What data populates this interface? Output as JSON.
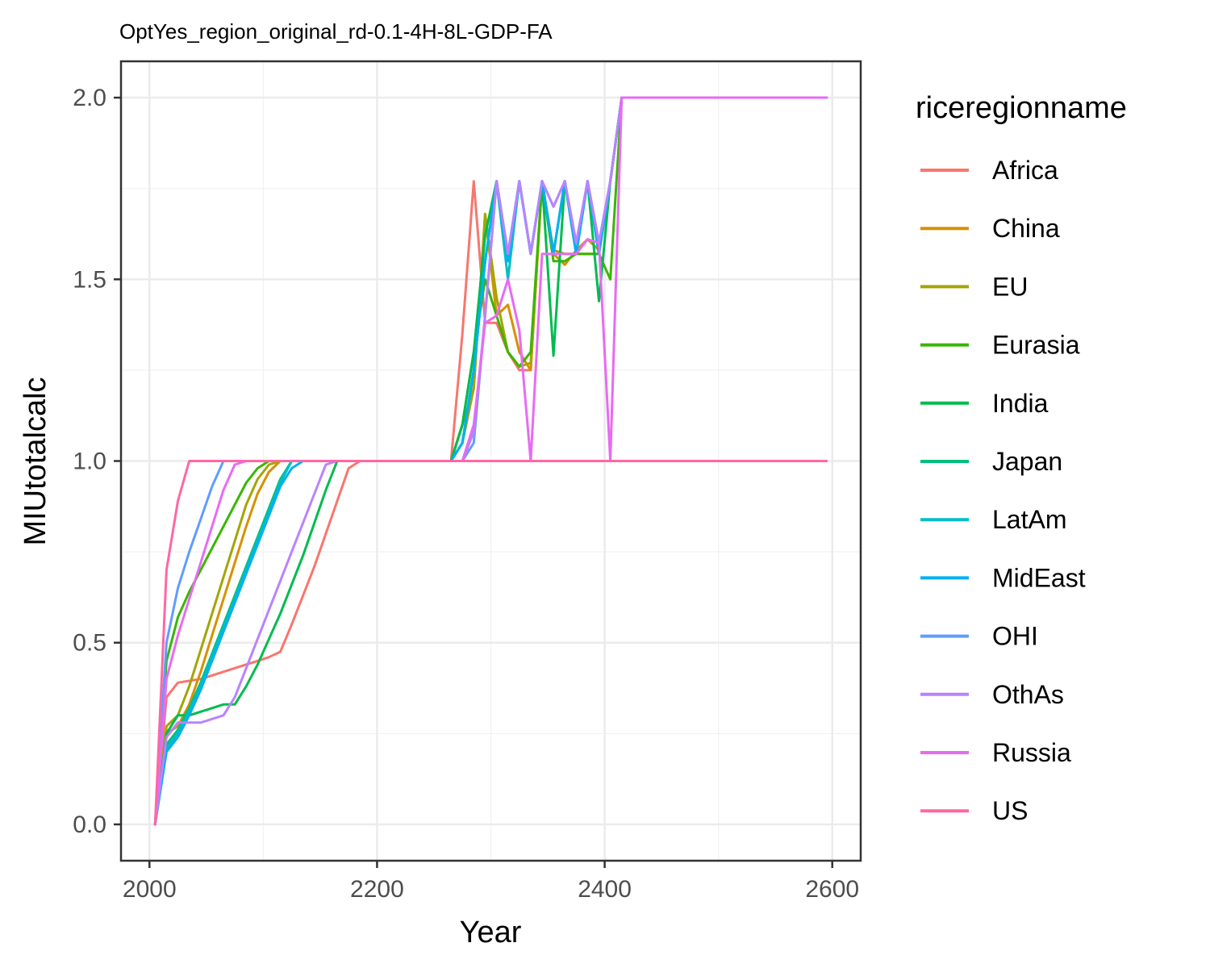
{
  "chart_data": {
    "type": "line",
    "title": "OptYes_region_original_rd-0.1-4H-8L-GDP-FA",
    "xlabel": "Year",
    "ylabel": "MIUtotalcalc",
    "xlim": [
      1975,
      2625
    ],
    "ylim": [
      -0.1,
      2.1
    ],
    "x_ticks": [
      2000,
      2200,
      2400,
      2600
    ],
    "y_ticks": [
      0.0,
      0.5,
      1.0,
      1.5,
      2.0
    ],
    "x_tick_labels": [
      "2000",
      "2200",
      "2400",
      "2600"
    ],
    "y_tick_labels": [
      "0.0",
      "0.5",
      "1.0",
      "1.5",
      "2.0"
    ],
    "grid": true,
    "legend": {
      "title": "riceregionname",
      "position": "right"
    },
    "series": [
      {
        "name": "Africa",
        "color": "#F8766D",
        "x": [
          2005,
          2015,
          2025,
          2035,
          2045,
          2055,
          2065,
          2075,
          2085,
          2095,
          2105,
          2115,
          2125,
          2135,
          2145,
          2155,
          2165,
          2175,
          2185,
          2195,
          2205,
          2215,
          2225,
          2235,
          2245,
          2255,
          2265,
          2275,
          2285,
          2295,
          2305,
          2315,
          2325,
          2335,
          2345,
          2355,
          2365,
          2375,
          2385,
          2395,
          2405,
          2415,
          2425,
          2500,
          2595
        ],
        "y": [
          0,
          0.35,
          0.39,
          0.395,
          0.4,
          0.41,
          0.42,
          0.43,
          0.44,
          0.45,
          0.46,
          0.475,
          0.55,
          0.63,
          0.71,
          0.8,
          0.89,
          0.98,
          1.0,
          1.0,
          1.0,
          1.0,
          1.0,
          1.0,
          1.0,
          1.0,
          1.0,
          1.35,
          1.77,
          1.38,
          1.38,
          1.3,
          1.25,
          1.25,
          1.77,
          1.57,
          1.77,
          1.57,
          1.77,
          1.57,
          1.77,
          2.0,
          2.0,
          2.0,
          2.0
        ]
      },
      {
        "name": "China",
        "color": "#D89000",
        "x": [
          2005,
          2015,
          2025,
          2035,
          2045,
          2055,
          2065,
          2075,
          2085,
          2095,
          2105,
          2115,
          2125,
          2175,
          2225,
          2265,
          2275,
          2285,
          2295,
          2305,
          2315,
          2325,
          2335,
          2345,
          2355,
          2365,
          2375,
          2385,
          2395,
          2405,
          2415,
          2500,
          2595
        ],
        "y": [
          0,
          0.25,
          0.27,
          0.33,
          0.42,
          0.52,
          0.62,
          0.72,
          0.82,
          0.91,
          0.97,
          1.0,
          1.0,
          1.0,
          1.0,
          1.0,
          1.1,
          1.2,
          1.68,
          1.4,
          1.43,
          1.3,
          1.25,
          1.77,
          1.57,
          1.54,
          1.58,
          1.61,
          1.58,
          1.77,
          2.0,
          2.0,
          2.0
        ]
      },
      {
        "name": "EU",
        "color": "#A3A500",
        "x": [
          2005,
          2015,
          2025,
          2035,
          2045,
          2055,
          2065,
          2075,
          2085,
          2095,
          2105,
          2115,
          2175,
          2265,
          2275,
          2285,
          2295,
          2305,
          2315,
          2325,
          2335,
          2345,
          2355,
          2365,
          2375,
          2385,
          2395,
          2405,
          2415,
          2500,
          2595
        ],
        "y": [
          0,
          0.27,
          0.3,
          0.38,
          0.48,
          0.58,
          0.68,
          0.78,
          0.88,
          0.95,
          0.99,
          1.0,
          1.0,
          1.0,
          1.05,
          1.2,
          1.68,
          1.45,
          1.3,
          1.26,
          1.27,
          1.77,
          1.58,
          1.57,
          1.57,
          1.57,
          1.57,
          1.77,
          2.0,
          2.0,
          2.0
        ]
      },
      {
        "name": "Eurasia",
        "color": "#39B600",
        "x": [
          2005,
          2015,
          2025,
          2035,
          2045,
          2055,
          2065,
          2075,
          2085,
          2095,
          2105,
          2115,
          2175,
          2265,
          2275,
          2285,
          2295,
          2305,
          2315,
          2325,
          2335,
          2345,
          2355,
          2365,
          2375,
          2385,
          2395,
          2405,
          2415,
          2500,
          2595
        ],
        "y": [
          0,
          0.45,
          0.57,
          0.64,
          0.7,
          0.76,
          0.82,
          0.88,
          0.94,
          0.98,
          1.0,
          1.0,
          1.0,
          1.0,
          1.1,
          1.3,
          1.5,
          1.4,
          1.3,
          1.26,
          1.3,
          1.77,
          1.55,
          1.55,
          1.57,
          1.57,
          1.57,
          1.5,
          2.0,
          2.0,
          2.0
        ]
      },
      {
        "name": "India",
        "color": "#00BB4E",
        "x": [
          2005,
          2015,
          2025,
          2035,
          2045,
          2055,
          2065,
          2075,
          2085,
          2095,
          2105,
          2115,
          2125,
          2135,
          2145,
          2155,
          2165,
          2175,
          2265,
          2275,
          2285,
          2295,
          2305,
          2315,
          2325,
          2335,
          2345,
          2355,
          2365,
          2375,
          2385,
          2395,
          2405,
          2415,
          2500,
          2595
        ],
        "y": [
          0,
          0.25,
          0.3,
          0.3,
          0.31,
          0.32,
          0.33,
          0.33,
          0.38,
          0.44,
          0.51,
          0.58,
          0.66,
          0.74,
          0.83,
          0.92,
          1.0,
          1.0,
          1.0,
          1.1,
          1.3,
          1.62,
          1.77,
          1.57,
          1.77,
          1.57,
          1.77,
          1.29,
          1.77,
          1.57,
          1.77,
          1.44,
          1.77,
          2.0,
          2.0,
          2.0
        ]
      },
      {
        "name": "Japan",
        "color": "#00BF7D",
        "x": [
          2005,
          2015,
          2025,
          2035,
          2045,
          2055,
          2065,
          2075,
          2085,
          2095,
          2105,
          2115,
          2125,
          2135,
          2175,
          2265,
          2275,
          2285,
          2295,
          2305,
          2315,
          2325,
          2335,
          2345,
          2355,
          2365,
          2375,
          2385,
          2395,
          2405,
          2415,
          2500,
          2595
        ],
        "y": [
          0,
          0.22,
          0.26,
          0.32,
          0.39,
          0.47,
          0.55,
          0.63,
          0.71,
          0.79,
          0.87,
          0.95,
          1.0,
          1.0,
          1.0,
          1.0,
          1.05,
          1.25,
          1.55,
          1.77,
          1.55,
          1.77,
          1.57,
          1.77,
          1.57,
          1.77,
          1.57,
          1.77,
          1.57,
          1.77,
          2.0,
          2.0,
          2.0
        ]
      },
      {
        "name": "LatAm",
        "color": "#00BFC4",
        "x": [
          2005,
          2015,
          2025,
          2035,
          2045,
          2055,
          2065,
          2075,
          2085,
          2095,
          2105,
          2115,
          2125,
          2135,
          2175,
          2265,
          2275,
          2285,
          2295,
          2305,
          2315,
          2325,
          2335,
          2345,
          2355,
          2365,
          2375,
          2385,
          2395,
          2405,
          2415,
          2500,
          2595
        ],
        "y": [
          0,
          0.21,
          0.25,
          0.31,
          0.38,
          0.46,
          0.54,
          0.62,
          0.7,
          0.78,
          0.86,
          0.94,
          1.0,
          1.0,
          1.0,
          1.0,
          1.05,
          1.25,
          1.55,
          1.77,
          1.5,
          1.77,
          1.57,
          1.77,
          1.57,
          1.77,
          1.57,
          1.77,
          1.57,
          1.77,
          2.0,
          2.0,
          2.0
        ]
      },
      {
        "name": "MidEast",
        "color": "#00B0F6",
        "x": [
          2005,
          2015,
          2025,
          2035,
          2045,
          2055,
          2065,
          2075,
          2085,
          2095,
          2105,
          2115,
          2125,
          2135,
          2175,
          2265,
          2275,
          2285,
          2295,
          2305,
          2315,
          2325,
          2335,
          2345,
          2355,
          2365,
          2375,
          2385,
          2395,
          2405,
          2415,
          2500,
          2595
        ],
        "y": [
          0,
          0.2,
          0.24,
          0.3,
          0.37,
          0.45,
          0.53,
          0.61,
          0.69,
          0.77,
          0.85,
          0.93,
          0.98,
          1.0,
          1.0,
          1.0,
          1.05,
          1.25,
          1.55,
          1.77,
          1.55,
          1.77,
          1.57,
          1.77,
          1.57,
          1.77,
          1.57,
          1.77,
          1.57,
          1.77,
          2.0,
          2.0,
          2.0
        ]
      },
      {
        "name": "OHI",
        "color": "#619CFF",
        "x": [
          2005,
          2015,
          2025,
          2035,
          2045,
          2055,
          2065,
          2075,
          2175,
          2265,
          2275,
          2285,
          2295,
          2305,
          2315,
          2325,
          2335,
          2345,
          2355,
          2365,
          2375,
          2385,
          2395,
          2405,
          2415,
          2500,
          2595
        ],
        "y": [
          0,
          0.5,
          0.65,
          0.75,
          0.84,
          0.93,
          1.0,
          1.0,
          1.0,
          1.0,
          1.0,
          1.05,
          1.4,
          1.77,
          1.57,
          1.77,
          1.57,
          1.77,
          1.7,
          1.77,
          1.6,
          1.77,
          1.6,
          1.77,
          2.0,
          2.0,
          2.0
        ]
      },
      {
        "name": "OthAs",
        "color": "#B983FF",
        "x": [
          2005,
          2015,
          2025,
          2035,
          2045,
          2055,
          2065,
          2075,
          2085,
          2095,
          2105,
          2115,
          2125,
          2135,
          2145,
          2155,
          2165,
          2175,
          2265,
          2275,
          2285,
          2295,
          2305,
          2315,
          2325,
          2335,
          2345,
          2355,
          2365,
          2375,
          2385,
          2395,
          2405,
          2415,
          2500,
          2595
        ],
        "y": [
          0,
          0.24,
          0.28,
          0.28,
          0.28,
          0.29,
          0.3,
          0.35,
          0.43,
          0.51,
          0.59,
          0.67,
          0.75,
          0.83,
          0.91,
          0.99,
          1.0,
          1.0,
          1.0,
          1.0,
          1.08,
          1.4,
          1.77,
          1.57,
          1.77,
          1.57,
          1.77,
          1.7,
          1.77,
          1.6,
          1.77,
          1.6,
          1.77,
          2.0,
          2.0,
          2.0
        ]
      },
      {
        "name": "Russia",
        "color": "#E76BF3",
        "x": [
          2005,
          2015,
          2025,
          2035,
          2045,
          2055,
          2065,
          2075,
          2085,
          2175,
          2265,
          2275,
          2285,
          2295,
          2305,
          2315,
          2325,
          2335,
          2345,
          2355,
          2365,
          2375,
          2385,
          2395,
          2405,
          2415,
          2500,
          2595
        ],
        "y": [
          0,
          0.4,
          0.52,
          0.62,
          0.72,
          0.82,
          0.92,
          0.99,
          1.0,
          1.0,
          1.0,
          1.0,
          1.1,
          1.38,
          1.4,
          1.5,
          1.36,
          1.0,
          1.57,
          1.57,
          1.57,
          1.57,
          1.61,
          1.6,
          1.0,
          2.0,
          2.0,
          2.0
        ]
      },
      {
        "name": "US",
        "color": "#FF67A4",
        "x": [
          2005,
          2015,
          2025,
          2035,
          2045,
          2200,
          2265,
          2400,
          2410,
          2595
        ],
        "y": [
          0,
          0.7,
          0.89,
          1.0,
          1.0,
          1.0,
          1.0,
          1.0,
          1.0,
          1.0
        ]
      }
    ]
  }
}
